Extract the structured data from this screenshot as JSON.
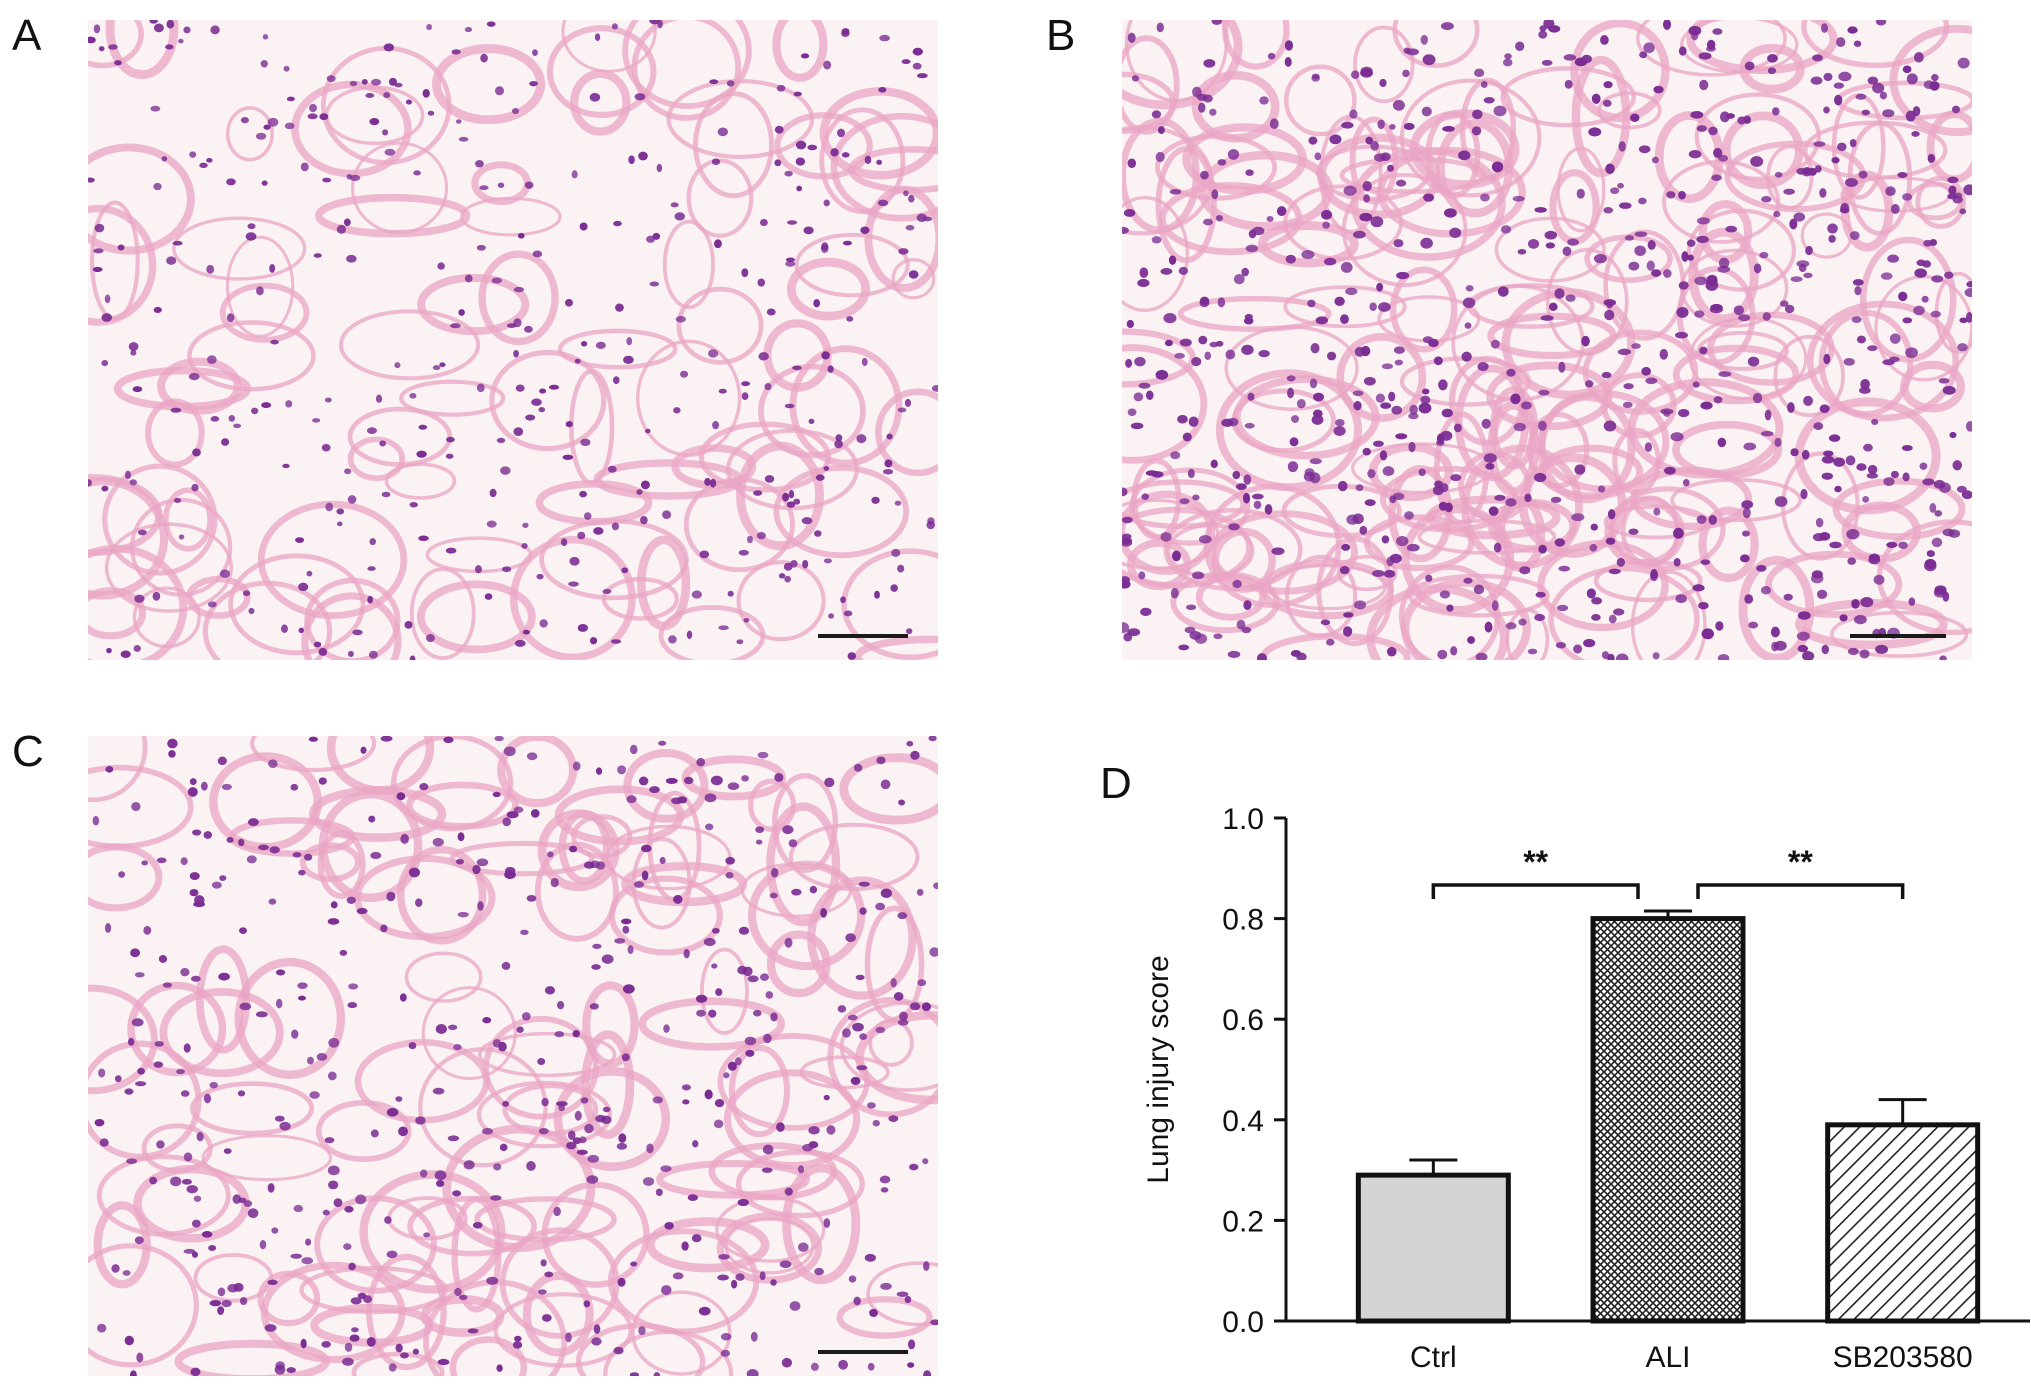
{
  "panels": {
    "a": {
      "label": "A"
    },
    "b": {
      "label": "B"
    },
    "c": {
      "label": "C"
    },
    "d": {
      "label": "D"
    }
  },
  "colors": {
    "tissue_pink": "#e9a6c4",
    "nucleus_purple": "#7a2c93",
    "background": "#fbf3f3"
  },
  "chart_data": {
    "type": "bar",
    "categories": [
      "Ctrl",
      "ALI",
      "SB203580"
    ],
    "values": [
      0.29,
      0.8,
      0.39
    ],
    "errors": [
      0.03,
      0.015,
      0.05
    ],
    "fills": [
      "solid-gray",
      "crosshatch",
      "diagonal-stripes"
    ],
    "ylabel": "Lung injury score",
    "xlabel": "",
    "ylim": [
      0,
      1.0
    ],
    "yticks": [
      "0.0",
      "0.2",
      "0.4",
      "0.6",
      "0.8",
      "1.0"
    ],
    "significance": [
      {
        "from": "Ctrl",
        "to": "ALI",
        "label": "**"
      },
      {
        "from": "ALI",
        "to": "SB203580",
        "label": "**"
      }
    ],
    "grid": false
  }
}
